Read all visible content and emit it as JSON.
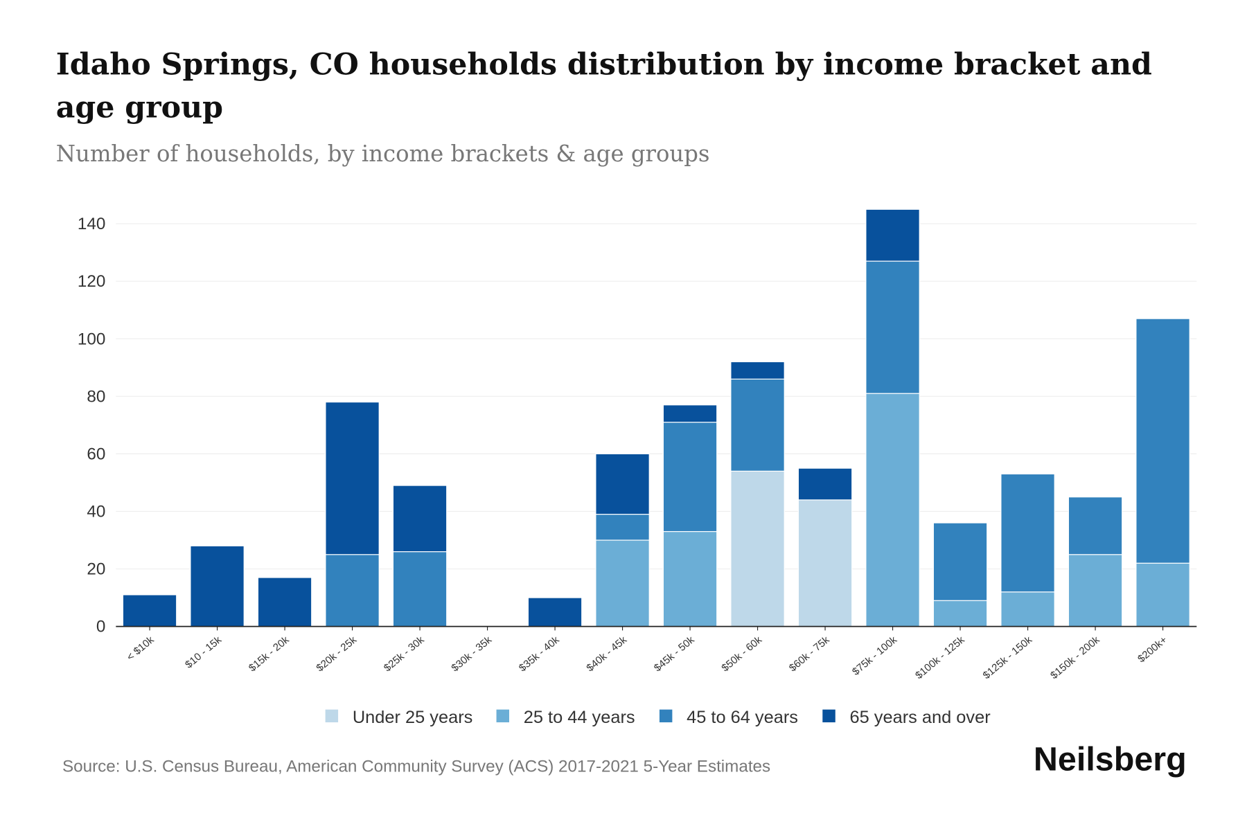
{
  "chart_data": {
    "type": "bar",
    "stacked": true,
    "title_line1": "Idaho Springs, CO households distribution by income bracket and",
    "title_line2": "age group",
    "subtitle": "Number of households, by income brackets & age groups",
    "xlabel": "",
    "ylabel": "",
    "ylim": [
      0,
      145
    ],
    "yticks": [
      "0",
      "20",
      "40",
      "60",
      "80",
      "100",
      "120",
      "140"
    ],
    "grid": true,
    "legend_position": "bottom",
    "categories": [
      "< $10k",
      "$10 - 15k",
      "$15k - 20k",
      "$20k - 25k",
      "$25k - 30k",
      "$30k - 35k",
      "$35k - 40k",
      "$40k - 45k",
      "$45k - 50k",
      "$50k - 60k",
      "$60k - 75k",
      "$75k - 100k",
      "$100k - 125k",
      "$125k - 150k",
      "$150k - 200k",
      "$200k+"
    ],
    "series": [
      {
        "name": "Under 25 years",
        "color": "#bed8e9",
        "values": [
          0,
          0,
          0,
          0,
          0,
          0,
          0,
          0,
          0,
          54,
          44,
          0,
          0,
          0,
          0,
          0
        ]
      },
      {
        "name": "25 to 44 years",
        "color": "#6baed6",
        "values": [
          0,
          0,
          0,
          0,
          0,
          0,
          0,
          30,
          33,
          0,
          0,
          81,
          9,
          12,
          25,
          22
        ]
      },
      {
        "name": "45 to 64 years",
        "color": "#3282bd",
        "values": [
          0,
          0,
          0,
          25,
          26,
          0,
          0,
          9,
          38,
          32,
          0,
          46,
          27,
          41,
          20,
          85
        ]
      },
      {
        "name": "65 years and over",
        "color": "#08519c",
        "values": [
          11,
          28,
          17,
          53,
          23,
          0,
          10,
          21,
          6,
          6,
          11,
          18,
          0,
          0,
          0,
          0
        ]
      }
    ]
  },
  "source": "Source: U.S. Census Bureau, American Community Survey (ACS) 2017-2021 5-Year Estimates",
  "logo": "Neilsberg"
}
